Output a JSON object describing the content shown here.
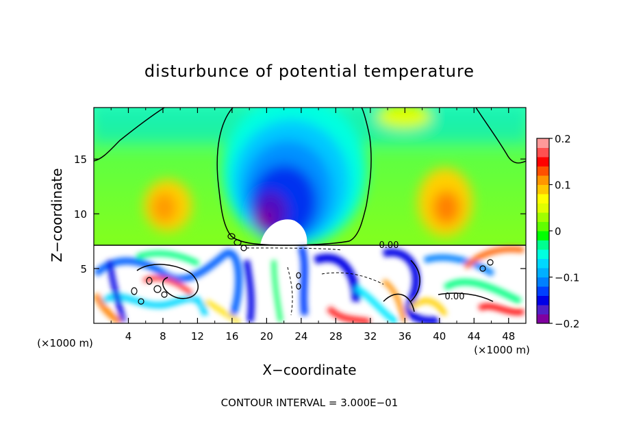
{
  "chart_data": {
    "type": "heatmap",
    "title": "disturbunce of potential temperature",
    "xlabel": "X−coordinate",
    "ylabel": "Z−coordinate",
    "x_unit_left": "(×1000 m)",
    "x_unit_right": "(×1000 m)",
    "footer": "CONTOUR INTERVAL = 3.000E−01",
    "xlim": [
      0,
      50
    ],
    "ylim": [
      0,
      19.7
    ],
    "x_ticks": [
      4,
      8,
      12,
      16,
      20,
      24,
      28,
      32,
      36,
      40,
      44,
      48
    ],
    "y_ticks": [
      5,
      10,
      15
    ],
    "colorbar": {
      "range": [
        -0.2,
        0.2
      ],
      "tick_values": [
        0.2,
        0.1,
        0,
        -0.1,
        -0.2
      ],
      "tick_labels": [
        "0.2",
        "0.1",
        "0",
        "−0.1",
        "−0.2"
      ],
      "colors": [
        "#8000a0",
        "#5020c8",
        "#0000e6",
        "#0040ff",
        "#0080ff",
        "#00b0ff",
        "#00d8ff",
        "#00ffe0",
        "#00ff90",
        "#00ff00",
        "#60ff00",
        "#a0ff00",
        "#e0ff00",
        "#ffff00",
        "#ffc800",
        "#ff9600",
        "#ff5000",
        "#ff0000",
        "#ff5050",
        "#ff9a9a"
      ]
    },
    "contour_labels": [
      {
        "text": "0.00",
        "x": 35.4,
        "y": 7.1
      },
      {
        "text": "0.00",
        "x": 41.5,
        "y": 2.5
      }
    ],
    "regions": [
      {
        "name": "cold-anomaly-core",
        "x": [
          17,
          25
        ],
        "y": [
          8,
          15
        ],
        "value": -0.2
      },
      {
        "name": "warm-anomaly-left",
        "x": [
          6,
          12
        ],
        "y": [
          9,
          12
        ],
        "value": 0.1
      },
      {
        "name": "warm-anomaly-right",
        "x": [
          38,
          44
        ],
        "y": [
          9,
          12
        ],
        "value": 0.15
      },
      {
        "name": "saturated-boundary-layer",
        "x": [
          0,
          50
        ],
        "y": [
          0,
          7.2
        ],
        "value": "mixed ±0.2+"
      }
    ]
  }
}
